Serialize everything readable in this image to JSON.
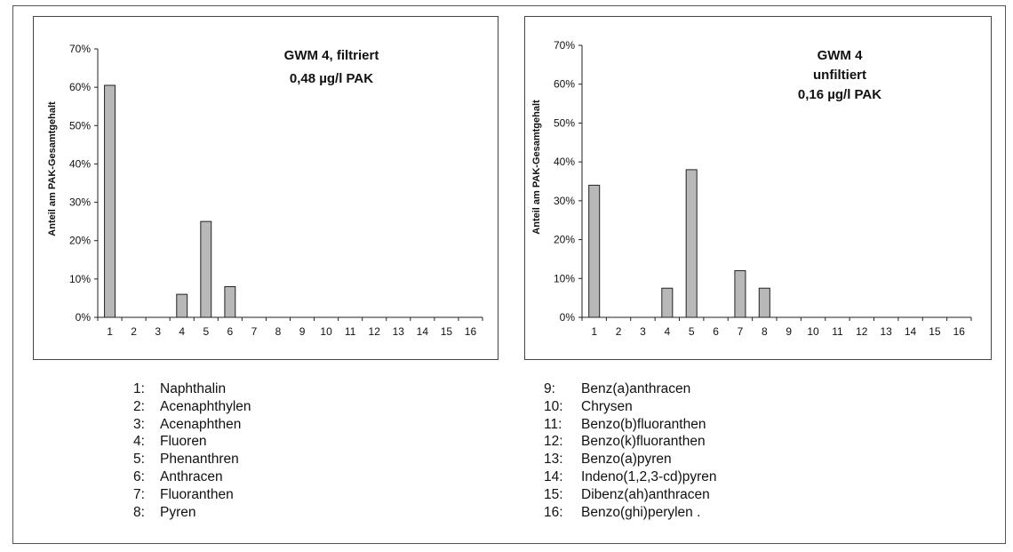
{
  "charts": [
    {
      "title_lines": [
        "GWM 4, filtriert",
        "0,48 µg/l PAK"
      ],
      "ylabel": "Anteil  am  PAK-Gesamtgehalt"
    },
    {
      "title_lines": [
        "GWM 4",
        "unfiltiert",
        "0,16 µg/l PAK"
      ],
      "ylabel": "Anteil  am  PAK-Gesamtgehalt"
    }
  ],
  "chart_data": [
    {
      "type": "bar",
      "title": "GWM 4, filtriert 0,48 µg/l PAK",
      "ylabel": "Anteil  am  PAK-Gesamtgehalt",
      "categories": [
        "1",
        "2",
        "3",
        "4",
        "5",
        "6",
        "7",
        "8",
        "9",
        "10",
        "11",
        "12",
        "13",
        "14",
        "15",
        "16"
      ],
      "values": [
        60.5,
        0,
        0,
        6,
        25,
        8,
        0,
        0,
        0,
        0,
        0,
        0,
        0,
        0,
        0,
        0
      ],
      "ylim": [
        0,
        70
      ],
      "yticks": [
        "0%",
        "10%",
        "20%",
        "30%",
        "40%",
        "50%",
        "60%",
        "70%"
      ],
      "grid": false,
      "bar_color": "#b8b8b8"
    },
    {
      "type": "bar",
      "title": "GWM 4 unfiltiert 0,16 µg/l PAK",
      "ylabel": "Anteil  am  PAK-Gesamtgehalt",
      "categories": [
        "1",
        "2",
        "3",
        "4",
        "5",
        "6",
        "7",
        "8",
        "9",
        "10",
        "11",
        "12",
        "13",
        "14",
        "15",
        "16"
      ],
      "values": [
        34,
        0,
        0,
        7.5,
        38,
        0,
        12,
        7.5,
        0,
        0,
        0,
        0,
        0,
        0,
        0,
        0
      ],
      "ylim": [
        0,
        70
      ],
      "yticks": [
        "0%",
        "10%",
        "20%",
        "30%",
        "40%",
        "50%",
        "60%",
        "70%"
      ],
      "grid": false,
      "bar_color": "#b8b8b8"
    }
  ],
  "legend": {
    "left": [
      {
        "num": "1:",
        "name": "Naphthalin"
      },
      {
        "num": "2:",
        "name": "Acenaphthylen"
      },
      {
        "num": "3:",
        "name": "Acenaphthen"
      },
      {
        "num": "4:",
        "name": "Fluoren"
      },
      {
        "num": "5:",
        "name": "Phenanthren"
      },
      {
        "num": "6:",
        "name": "Anthracen"
      },
      {
        "num": "7:",
        "name": "Fluoranthen"
      },
      {
        "num": "8:",
        "name": "Pyren"
      }
    ],
    "right": [
      {
        "num": "9:",
        "name": "Benz(a)anthracen"
      },
      {
        "num": "10:",
        "name": "Chrysen"
      },
      {
        "num": "11:",
        "name": "Benzo(b)fluoranthen"
      },
      {
        "num": "12:",
        "name": "Benzo(k)fluoranthen"
      },
      {
        "num": "13:",
        "name": "Benzo(a)pyren"
      },
      {
        "num": "14:",
        "name": "Indeno(1,2,3-cd)pyren"
      },
      {
        "num": "15:",
        "name": "Dibenz(ah)anthracen"
      },
      {
        "num": "16:",
        "name": "Benzo(ghi)perylen ."
      }
    ]
  }
}
